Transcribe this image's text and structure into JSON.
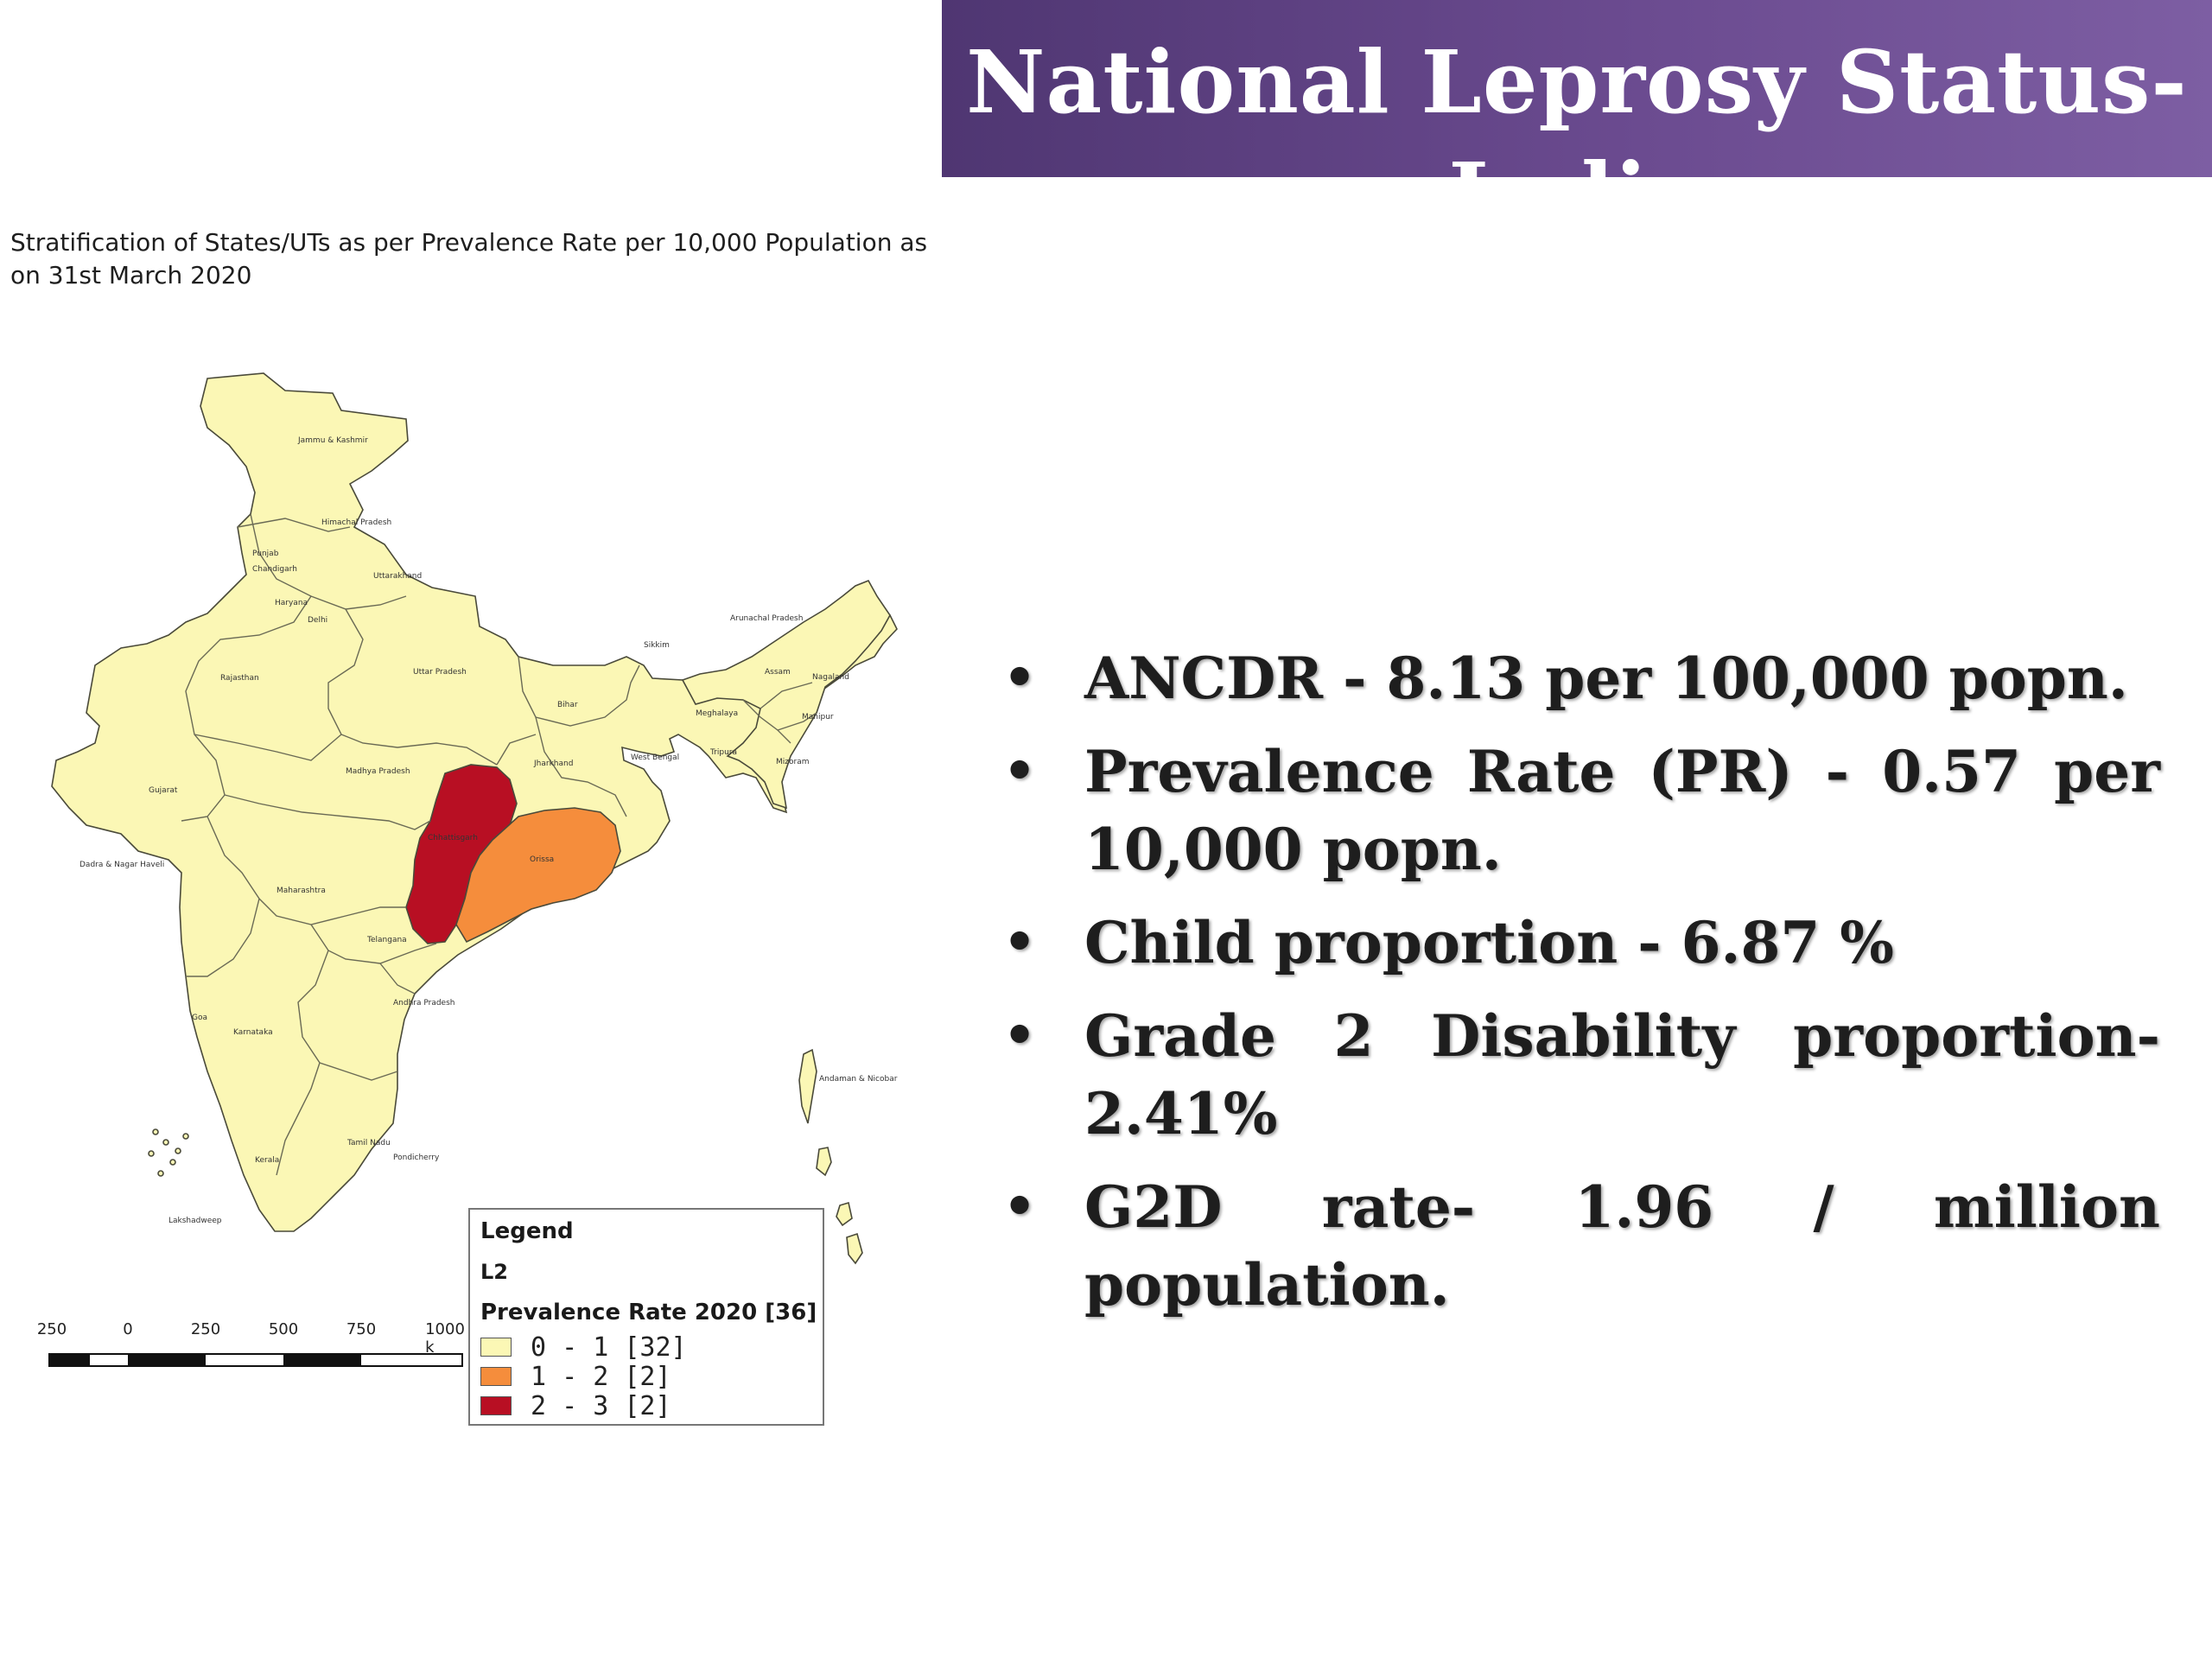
{
  "slide": {
    "title": "National Leprosy Status-India",
    "colors": {
      "banner": "#5e4282",
      "title_text": "#ffffff",
      "body_text": "#1e1e1e"
    }
  },
  "map": {
    "caption": "Stratification of States/UTs as per Prevalence Rate per 10,000 Population as on 31st March 2020",
    "colors": {
      "class_0_1": "#fbf7b5",
      "class_1_2": "#f58d3c",
      "class_2_3": "#b80f23"
    },
    "state_labels": {
      "jammu_kashmir": "Jammu & Kashmir",
      "himachal": "Himachal Pradesh",
      "punjab": "Punjab",
      "chandigarh": "Chandigarh",
      "uttarakhand": "Uttarakhand",
      "haryana": "Haryana",
      "delhi": "Delhi",
      "rajasthan": "Rajasthan",
      "uttar_pradesh": "Uttar Pradesh",
      "bihar": "Bihar",
      "sikkim": "Sikkim",
      "arunachal": "Arunachal Pradesh",
      "assam": "Assam",
      "nagaland": "Nagaland",
      "meghalaya": "Meghalaya",
      "manipur": "Manipur",
      "tripura": "Tripura",
      "mizoram": "Mizoram",
      "west_bengal": "West Bengal",
      "jharkhand": "Jharkhand",
      "gujarat": "Gujarat",
      "madhya_pradesh": "Madhya Pradesh",
      "chhattisgarh": "Chhattisgarh",
      "orissa": "Orissa",
      "dadra": "Dadra & Nagar Haveli",
      "maharashtra": "Maharashtra",
      "telangana": "Telangana",
      "andhra": "Andhra Pradesh",
      "goa": "Goa",
      "karnataka": "Karnataka",
      "tamil_nadu": "Tamil Nadu",
      "pondicherry": "Pondicherry",
      "kerala": "Kerala",
      "lakshadweep": "Lakshadweep",
      "andaman": "Andaman & Nicobar"
    },
    "scale": {
      "ticks": [
        "250",
        "0",
        "250",
        "500",
        "750",
        "1000 k"
      ]
    },
    "legend": {
      "heading": "Legend",
      "layer": "L2",
      "field": "Prevalence Rate 2020 [36]",
      "classes": [
        {
          "label": "0 - 1  [32]",
          "color": "#fbf7b5"
        },
        {
          "label": "1 - 2  [2]",
          "color": "#f58d3c"
        },
        {
          "label": "2 - 3  [2]",
          "color": "#b80f23"
        }
      ]
    }
  },
  "stats": [
    "ANCDR - 8.13 per 100,000 popn.",
    "Prevalence Rate (PR) - 0.57 per 10,000 popn.",
    "Child proportion - 6.87 %",
    "Grade 2 Disability proportion- 2.41%",
    "G2D rate- 1.96 / million population."
  ],
  "bullet_glyph": "•"
}
